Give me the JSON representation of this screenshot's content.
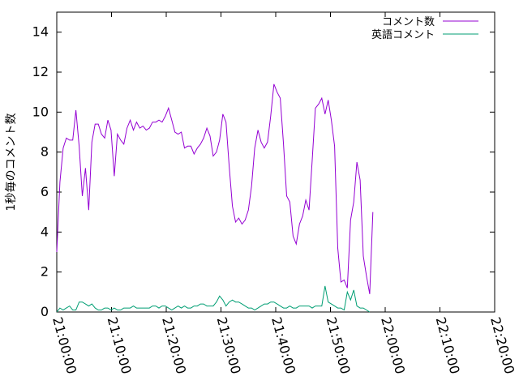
{
  "chart_data": {
    "type": "line",
    "title": "",
    "xlabel": "",
    "ylabel": "1秒毎のコメント数",
    "xlim": [
      "21:00:00",
      "22:20:00"
    ],
    "ylim": [
      0,
      15
    ],
    "x_ticks": [
      "21:00:00",
      "21:10:00",
      "21:20:00",
      "21:30:00",
      "21:40:00",
      "21:50:00",
      "22:00:00",
      "22:10:00",
      "22:20:00"
    ],
    "y_ticks": [
      "0",
      "2",
      "4",
      "6",
      "8",
      "10",
      "12",
      "14"
    ],
    "grid": false,
    "legend_position": "top-right",
    "series": [
      {
        "name": "コメント数",
        "color": "#9400d3",
        "points": [
          [
            "21:00:00",
            3.0
          ],
          [
            "21:00:35",
            6.5
          ],
          [
            "21:01:10",
            8.2
          ],
          [
            "21:01:45",
            8.7
          ],
          [
            "21:02:20",
            8.6
          ],
          [
            "21:02:55",
            8.6
          ],
          [
            "21:03:30",
            10.1
          ],
          [
            "21:04:05",
            8.3
          ],
          [
            "21:04:40",
            5.8
          ],
          [
            "21:05:15",
            7.2
          ],
          [
            "21:05:50",
            5.1
          ],
          [
            "21:06:25",
            8.5
          ],
          [
            "21:07:00",
            9.4
          ],
          [
            "21:07:35",
            9.4
          ],
          [
            "21:08:10",
            8.9
          ],
          [
            "21:08:45",
            8.7
          ],
          [
            "21:09:20",
            9.6
          ],
          [
            "21:09:55",
            9.1
          ],
          [
            "21:10:30",
            6.8
          ],
          [
            "21:11:05",
            8.9
          ],
          [
            "21:11:40",
            8.6
          ],
          [
            "21:12:15",
            8.4
          ],
          [
            "21:12:50",
            9.2
          ],
          [
            "21:13:25",
            9.6
          ],
          [
            "21:14:00",
            9.1
          ],
          [
            "21:14:35",
            9.5
          ],
          [
            "21:15:10",
            9.2
          ],
          [
            "21:15:45",
            9.3
          ],
          [
            "21:16:20",
            9.1
          ],
          [
            "21:16:55",
            9.2
          ],
          [
            "21:17:30",
            9.5
          ],
          [
            "21:18:05",
            9.5
          ],
          [
            "21:18:40",
            9.6
          ],
          [
            "21:19:15",
            9.5
          ],
          [
            "21:19:50",
            9.8
          ],
          [
            "21:20:25",
            10.2
          ],
          [
            "21:21:00",
            9.6
          ],
          [
            "21:21:35",
            9.0
          ],
          [
            "21:22:10",
            8.9
          ],
          [
            "21:22:45",
            9.0
          ],
          [
            "21:23:20",
            8.2
          ],
          [
            "21:23:55",
            8.3
          ],
          [
            "21:24:30",
            8.3
          ],
          [
            "21:25:05",
            7.9
          ],
          [
            "21:25:40",
            8.2
          ],
          [
            "21:26:15",
            8.4
          ],
          [
            "21:26:50",
            8.7
          ],
          [
            "21:27:25",
            9.2
          ],
          [
            "21:28:00",
            8.8
          ],
          [
            "21:28:35",
            7.8
          ],
          [
            "21:29:10",
            8.0
          ],
          [
            "21:29:45",
            8.6
          ],
          [
            "21:30:20",
            9.9
          ],
          [
            "21:30:55",
            9.5
          ],
          [
            "21:31:30",
            7.3
          ],
          [
            "21:32:05",
            5.3
          ],
          [
            "21:32:40",
            4.5
          ],
          [
            "21:33:15",
            4.7
          ],
          [
            "21:33:50",
            4.4
          ],
          [
            "21:34:25",
            4.6
          ],
          [
            "21:35:00",
            5.1
          ],
          [
            "21:35:35",
            6.3
          ],
          [
            "21:36:10",
            8.2
          ],
          [
            "21:36:45",
            9.1
          ],
          [
            "21:37:20",
            8.5
          ],
          [
            "21:37:55",
            8.2
          ],
          [
            "21:38:30",
            8.5
          ],
          [
            "21:39:05",
            9.8
          ],
          [
            "21:39:40",
            11.4
          ],
          [
            "21:40:15",
            11.0
          ],
          [
            "21:40:50",
            10.7
          ],
          [
            "21:41:25",
            8.4
          ],
          [
            "21:42:00",
            5.8
          ],
          [
            "21:42:35",
            5.5
          ],
          [
            "21:43:10",
            3.8
          ],
          [
            "21:43:45",
            3.4
          ],
          [
            "21:44:20",
            4.4
          ],
          [
            "21:44:55",
            4.8
          ],
          [
            "21:45:30",
            5.6
          ],
          [
            "21:46:05",
            5.1
          ],
          [
            "21:46:40",
            7.6
          ],
          [
            "21:47:15",
            10.2
          ],
          [
            "21:47:50",
            10.4
          ],
          [
            "21:48:25",
            10.7
          ],
          [
            "21:49:00",
            9.9
          ],
          [
            "21:49:35",
            10.6
          ],
          [
            "21:50:10",
            9.6
          ],
          [
            "21:50:45",
            8.3
          ],
          [
            "21:51:20",
            3.2
          ],
          [
            "21:51:55",
            1.5
          ],
          [
            "21:52:30",
            1.6
          ],
          [
            "21:53:05",
            1.2
          ],
          [
            "21:53:40",
            4.6
          ],
          [
            "21:54:15",
            5.5
          ],
          [
            "21:54:50",
            7.5
          ],
          [
            "21:55:25",
            6.6
          ],
          [
            "21:56:00",
            2.8
          ],
          [
            "21:56:35",
            1.8
          ],
          [
            "21:57:10",
            0.9
          ],
          [
            "21:57:45",
            5.0
          ]
        ]
      },
      {
        "name": "英語コメント",
        "color": "#009e73",
        "points": [
          [
            "21:00:00",
            0.0
          ],
          [
            "21:00:35",
            0.2
          ],
          [
            "21:01:10",
            0.1
          ],
          [
            "21:01:45",
            0.2
          ],
          [
            "21:02:20",
            0.3
          ],
          [
            "21:02:55",
            0.1
          ],
          [
            "21:03:30",
            0.1
          ],
          [
            "21:04:05",
            0.5
          ],
          [
            "21:04:40",
            0.5
          ],
          [
            "21:05:15",
            0.4
          ],
          [
            "21:05:50",
            0.3
          ],
          [
            "21:06:25",
            0.4
          ],
          [
            "21:07:00",
            0.2
          ],
          [
            "21:07:35",
            0.1
          ],
          [
            "21:08:10",
            0.1
          ],
          [
            "21:08:45",
            0.2
          ],
          [
            "21:09:20",
            0.2
          ],
          [
            "21:09:55",
            0.1
          ],
          [
            "21:10:30",
            0.2
          ],
          [
            "21:11:05",
            0.1
          ],
          [
            "21:11:40",
            0.1
          ],
          [
            "21:12:15",
            0.2
          ],
          [
            "21:12:50",
            0.2
          ],
          [
            "21:13:25",
            0.2
          ],
          [
            "21:14:00",
            0.3
          ],
          [
            "21:14:35",
            0.2
          ],
          [
            "21:15:10",
            0.2
          ],
          [
            "21:15:45",
            0.2
          ],
          [
            "21:16:20",
            0.2
          ],
          [
            "21:16:55",
            0.2
          ],
          [
            "21:17:30",
            0.3
          ],
          [
            "21:18:05",
            0.3
          ],
          [
            "21:18:40",
            0.2
          ],
          [
            "21:19:15",
            0.3
          ],
          [
            "21:19:50",
            0.3
          ],
          [
            "21:20:25",
            0.2
          ],
          [
            "21:21:00",
            0.1
          ],
          [
            "21:21:35",
            0.2
          ],
          [
            "21:22:10",
            0.3
          ],
          [
            "21:22:45",
            0.2
          ],
          [
            "21:23:20",
            0.3
          ],
          [
            "21:23:55",
            0.2
          ],
          [
            "21:24:30",
            0.2
          ],
          [
            "21:25:05",
            0.3
          ],
          [
            "21:25:40",
            0.3
          ],
          [
            "21:26:15",
            0.4
          ],
          [
            "21:26:50",
            0.4
          ],
          [
            "21:27:25",
            0.3
          ],
          [
            "21:28:00",
            0.3
          ],
          [
            "21:28:35",
            0.3
          ],
          [
            "21:29:10",
            0.5
          ],
          [
            "21:29:45",
            0.8
          ],
          [
            "21:30:20",
            0.6
          ],
          [
            "21:30:55",
            0.3
          ],
          [
            "21:31:30",
            0.5
          ],
          [
            "21:32:05",
            0.6
          ],
          [
            "21:32:40",
            0.5
          ],
          [
            "21:33:15",
            0.5
          ],
          [
            "21:33:50",
            0.4
          ],
          [
            "21:34:25",
            0.3
          ],
          [
            "21:35:00",
            0.2
          ],
          [
            "21:35:35",
            0.2
          ],
          [
            "21:36:10",
            0.1
          ],
          [
            "21:36:45",
            0.2
          ],
          [
            "21:37:20",
            0.3
          ],
          [
            "21:37:55",
            0.4
          ],
          [
            "21:38:30",
            0.4
          ],
          [
            "21:39:05",
            0.5
          ],
          [
            "21:39:40",
            0.5
          ],
          [
            "21:40:15",
            0.4
          ],
          [
            "21:40:50",
            0.3
          ],
          [
            "21:41:25",
            0.2
          ],
          [
            "21:42:00",
            0.2
          ],
          [
            "21:42:35",
            0.3
          ],
          [
            "21:43:10",
            0.2
          ],
          [
            "21:43:45",
            0.2
          ],
          [
            "21:44:20",
            0.3
          ],
          [
            "21:44:55",
            0.3
          ],
          [
            "21:45:30",
            0.3
          ],
          [
            "21:46:05",
            0.3
          ],
          [
            "21:46:40",
            0.2
          ],
          [
            "21:47:15",
            0.3
          ],
          [
            "21:47:50",
            0.3
          ],
          [
            "21:48:25",
            0.3
          ],
          [
            "21:49:00",
            1.3
          ],
          [
            "21:49:35",
            0.5
          ],
          [
            "21:50:10",
            0.4
          ],
          [
            "21:50:45",
            0.3
          ],
          [
            "21:51:20",
            0.2
          ],
          [
            "21:51:55",
            0.2
          ],
          [
            "21:52:30",
            0.1
          ],
          [
            "21:53:05",
            1.0
          ],
          [
            "21:53:40",
            0.6
          ],
          [
            "21:54:15",
            1.1
          ],
          [
            "21:54:50",
            0.3
          ],
          [
            "21:55:25",
            0.2
          ],
          [
            "21:56:00",
            0.2
          ],
          [
            "21:56:35",
            0.1
          ],
          [
            "21:57:10",
            0.0
          ]
        ]
      }
    ]
  }
}
